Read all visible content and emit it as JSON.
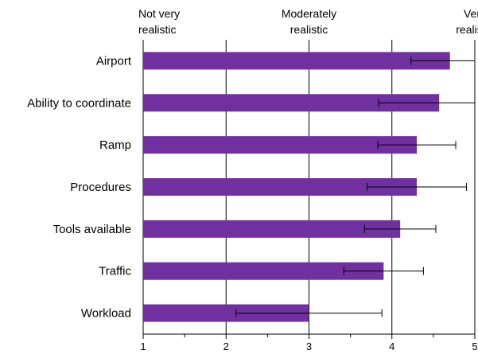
{
  "chart_data": {
    "type": "bar",
    "orientation": "horizontal",
    "categories": [
      "Airport",
      "Ability to coordinate",
      "Ramp",
      "Procedures",
      "Tools available",
      "Traffic",
      "Workload"
    ],
    "values": [
      4.7,
      4.57,
      4.3,
      4.3,
      4.1,
      3.9,
      3.0
    ],
    "error": [
      0.47,
      0.73,
      0.47,
      0.6,
      0.43,
      0.48,
      0.88
    ],
    "xlim": [
      1,
      5
    ],
    "xticks": [
      "1",
      "2",
      "3",
      "4",
      "5"
    ],
    "scale_anchors": [
      {
        "at": 1,
        "lines": [
          "Not very",
          "realistic"
        ]
      },
      {
        "at": 3,
        "lines": [
          "Moderately",
          "realistic"
        ]
      },
      {
        "at": 5,
        "lines": [
          "Very",
          "realistic"
        ]
      }
    ],
    "bar_color": "#7030a0",
    "grid": "vertical major lines",
    "title": "",
    "xlabel": "",
    "ylabel": ""
  }
}
